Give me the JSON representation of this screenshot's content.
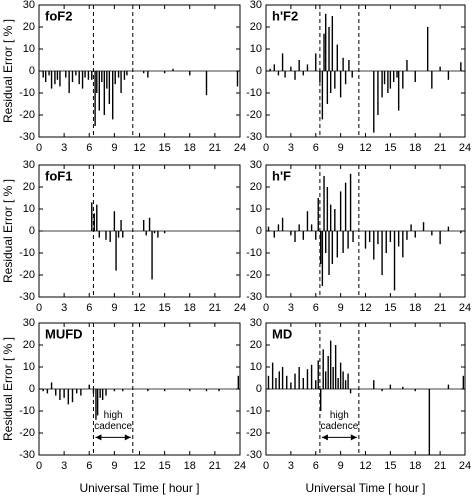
{
  "chart_data": [
    {
      "type": "bar",
      "panel_label": "foF2",
      "y_label": "Residual Error [ % ]",
      "xlim": [
        0,
        24
      ],
      "ylim": [
        -30,
        30
      ],
      "xticks": [
        0,
        3,
        6,
        9,
        12,
        15,
        18,
        21,
        24
      ],
      "yticks": [
        -30,
        -20,
        -10,
        0,
        10,
        20,
        30
      ],
      "dashed_x": [
        6.5,
        11.2
      ],
      "x": [
        0.5,
        0.8,
        1.2,
        1.5,
        1.9,
        2.2,
        2.5,
        3.2,
        3.6,
        4,
        4.4,
        4.8,
        5.2,
        5.5,
        5.9,
        6.3,
        6.7,
        6.9,
        7.2,
        7.5,
        7.8,
        8.1,
        8.4,
        8.8,
        9.1,
        9.5,
        9.8,
        10.2,
        10.5,
        12.5,
        13,
        15,
        16,
        18,
        20,
        23.7
      ],
      "values": [
        -3,
        -5,
        -2,
        -8,
        -6,
        -4,
        -7,
        -3,
        -10,
        -5,
        -2,
        -6,
        -8,
        -3,
        -4,
        -4,
        -25,
        -10,
        -18,
        -5,
        -20,
        -8,
        -15,
        -22,
        -6,
        -3,
        -10,
        -4,
        -2,
        -1,
        -3,
        -1,
        1,
        -2,
        -11,
        -7
      ]
    },
    {
      "type": "bar",
      "panel_label": "h'F2",
      "xlim": [
        0,
        24
      ],
      "ylim": [
        -30,
        30
      ],
      "xticks": [
        0,
        3,
        6,
        9,
        12,
        15,
        18,
        21,
        24
      ],
      "yticks": [
        -30,
        -20,
        -10,
        0,
        10,
        20,
        30
      ],
      "dashed_x": [
        6.5,
        11.2
      ],
      "x": [
        0.5,
        1,
        1.5,
        2,
        2.3,
        3,
        3.5,
        4,
        4.5,
        5,
        6,
        6.5,
        6.8,
        7,
        7.2,
        7.4,
        7.6,
        7.8,
        8,
        8.3,
        8.6,
        9,
        9.3,
        9.6,
        10,
        10.4,
        13,
        13.5,
        14,
        14.3,
        14.7,
        15,
        15.4,
        15.8,
        16,
        16.5,
        17,
        18,
        19.5,
        20,
        21,
        22,
        23.5
      ],
      "values": [
        1,
        3,
        -2,
        8,
        -3,
        2,
        -4,
        5,
        -2,
        3,
        8,
        -5,
        -22,
        17,
        26,
        -15,
        20,
        -10,
        25,
        -8,
        12,
        -12,
        6,
        -6,
        5,
        -3,
        -28,
        -20,
        -12,
        -6,
        -10,
        -8,
        -5,
        -3,
        -18,
        -8,
        5,
        -5,
        20,
        -8,
        2,
        -4,
        4
      ]
    },
    {
      "type": "bar",
      "panel_label": "foF1",
      "y_label": "Residual Error [ % ]",
      "xlim": [
        0,
        24
      ],
      "ylim": [
        -30,
        30
      ],
      "xticks": [
        0,
        3,
        6,
        9,
        12,
        15,
        18,
        21,
        24
      ],
      "yticks": [
        -30,
        -20,
        -10,
        0,
        10,
        20,
        30
      ],
      "dashed_x": [
        6.5,
        11.2
      ],
      "x": [
        6.3,
        6.6,
        6.9,
        7.2,
        8,
        8.5,
        9,
        9.2,
        9.5,
        9.8,
        10,
        12.5,
        12.8,
        13.2,
        13.5,
        13.8,
        14.2,
        15
      ],
      "values": [
        13,
        8,
        12,
        -3,
        -4,
        -5,
        9,
        -18,
        -3,
        5,
        -3,
        5,
        -2,
        6,
        -22,
        -1,
        -3,
        -1
      ]
    },
    {
      "type": "bar",
      "panel_label": "h'F",
      "xlim": [
        0,
        24
      ],
      "ylim": [
        -30,
        30
      ],
      "xticks": [
        0,
        3,
        6,
        9,
        12,
        15,
        18,
        21,
        24
      ],
      "yticks": [
        -30,
        -20,
        -10,
        0,
        10,
        20,
        30
      ],
      "dashed_x": [
        6.5,
        11.2
      ],
      "x": [
        0.3,
        1,
        1.5,
        2,
        3,
        3.5,
        4,
        4.5,
        5,
        5.5,
        6,
        6.3,
        6.6,
        6.8,
        7,
        7.2,
        7.4,
        7.6,
        7.8,
        8,
        8.3,
        8.6,
        9,
        9.3,
        9.6,
        9.9,
        10.2,
        10.5,
        12,
        12.5,
        13,
        13.5,
        14,
        14.5,
        15,
        15.5,
        16,
        16.5,
        17,
        17.5,
        18,
        19,
        20,
        21,
        22,
        23.5
      ],
      "values": [
        2,
        -3,
        3,
        6,
        -2,
        -5,
        3,
        -4,
        9,
        3,
        -4,
        15,
        -15,
        -25,
        25,
        -10,
        20,
        -20,
        12,
        -15,
        10,
        -12,
        18,
        -10,
        22,
        -8,
        26,
        -5,
        -8,
        -5,
        -13,
        -6,
        -20,
        -10,
        -5,
        -27,
        -7,
        -12,
        -4,
        3,
        -3,
        4,
        -2,
        -6,
        2,
        -1
      ]
    },
    {
      "type": "bar",
      "panel_label": "MUFD",
      "y_label": "Residual Error [ % ]",
      "x_label": "Universal Time [ hour ]",
      "annotation": [
        "high",
        "cadence"
      ],
      "xlim": [
        0,
        24
      ],
      "ylim": [
        -30,
        30
      ],
      "xticks": [
        0,
        3,
        6,
        9,
        12,
        15,
        18,
        21,
        24
      ],
      "yticks": [
        -30,
        -20,
        -10,
        0,
        10,
        20,
        30
      ],
      "dashed_x": [
        6.5,
        11.2
      ],
      "x": [
        0.5,
        1,
        1.5,
        2,
        2.5,
        3,
        3.5,
        4,
        4.5,
        5,
        6,
        6.5,
        6.8,
        7,
        7.3,
        7.6,
        8,
        9,
        10,
        13,
        15,
        18,
        20,
        21.5,
        23.8
      ],
      "values": [
        -1,
        -2,
        3,
        -3,
        -5,
        -4,
        -7,
        -6,
        -2,
        -3,
        2,
        -2,
        -14,
        -12,
        -4,
        -5,
        -3,
        -1,
        -1,
        -1,
        -1,
        -1,
        -1,
        -1,
        6
      ]
    },
    {
      "type": "bar",
      "panel_label": "MD",
      "x_label": "Universal Time [ hour ]",
      "annotation": [
        "high",
        "cadence"
      ],
      "xlim": [
        0,
        24
      ],
      "ylim": [
        -30,
        30
      ],
      "xticks": [
        0,
        3,
        6,
        9,
        12,
        15,
        18,
        21,
        24
      ],
      "yticks": [
        -30,
        -20,
        -10,
        0,
        10,
        20,
        30
      ],
      "dashed_x": [
        6.5,
        11.2
      ],
      "x": [
        0.3,
        0.8,
        1.2,
        1.6,
        2,
        2.5,
        3,
        3.5,
        4,
        4.5,
        5,
        5.5,
        6,
        6.3,
        6.6,
        6.9,
        7.2,
        7.5,
        7.8,
        8.1,
        8.4,
        8.7,
        9,
        9.3,
        9.6,
        9.9,
        10.2,
        13,
        14,
        15,
        16.5,
        18,
        19.7,
        22,
        23.8
      ],
      "values": [
        6,
        12,
        5,
        8,
        10,
        6,
        3,
        7,
        10,
        5,
        9,
        11,
        4,
        13,
        -10,
        18,
        8,
        15,
        22,
        10,
        20,
        5,
        12,
        8,
        4,
        7,
        -2,
        4,
        -1,
        2,
        1,
        -1,
        -30,
        2,
        6
      ]
    }
  ]
}
